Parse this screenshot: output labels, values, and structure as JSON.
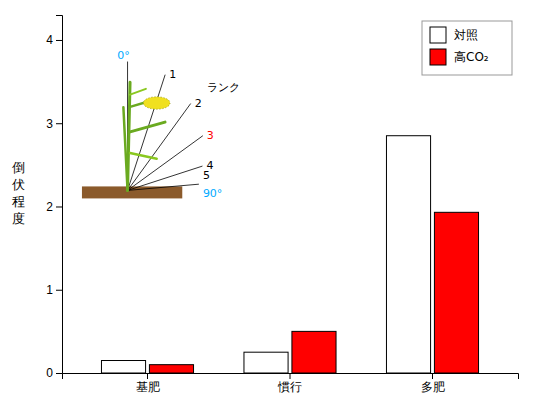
{
  "chart_data": {
    "type": "bar",
    "categories": [
      "基肥",
      "慣行",
      "多肥"
    ],
    "series": [
      {
        "name": "対照",
        "color": "#ffffff",
        "values": [
          0.15,
          0.25,
          2.85
        ]
      },
      {
        "name": "高CO₂",
        "color": "#ff0000",
        "values": [
          0.1,
          0.5,
          1.93
        ]
      }
    ],
    "y_label": "倒伏程度",
    "ylim": [
      0,
      4.3
    ],
    "yticks": [
      0,
      1,
      2,
      3,
      4
    ],
    "grid": false,
    "legend": "upper right",
    "annotations": [
      {
        "text": "0°",
        "color": "#00aaff"
      },
      {
        "text": "1",
        "color": "#000000"
      },
      {
        "text": "2",
        "color": "#000000"
      },
      {
        "text": "ランク",
        "color": "#000000"
      },
      {
        "text": "3",
        "color": "#ff0000"
      },
      {
        "text": "4",
        "color": "#000000"
      },
      {
        "text": "5",
        "color": "#000000"
      },
      {
        "text": "90°",
        "color": "#00aaff"
      }
    ]
  }
}
